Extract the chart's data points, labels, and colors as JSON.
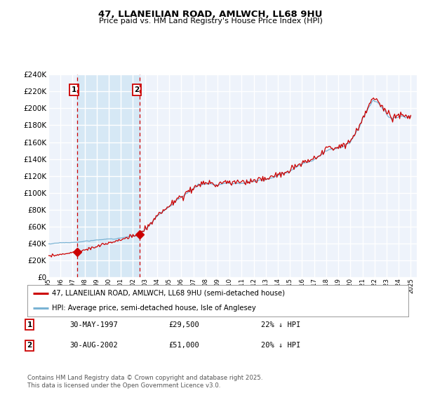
{
  "title": "47, LLANEILIAN ROAD, AMLWCH, LL68 9HU",
  "subtitle": "Price paid vs. HM Land Registry's House Price Index (HPI)",
  "red_label": "47, LLANEILIAN ROAD, AMLWCH, LL68 9HU (semi-detached house)",
  "blue_label": "HPI: Average price, semi-detached house, Isle of Anglesey",
  "footnote": "Contains HM Land Registry data © Crown copyright and database right 2025.\nThis data is licensed under the Open Government Licence v3.0.",
  "purchase1_date": "30-MAY-1997",
  "purchase1_price": 29500,
  "purchase1_hpi_pct": "22% ↓ HPI",
  "purchase2_date": "30-AUG-2002",
  "purchase2_price": 51000,
  "purchase2_hpi_pct": "20% ↓ HPI",
  "purchase1_year": 1997.37,
  "purchase2_year": 2002.58,
  "ylim": [
    0,
    240000
  ],
  "ytick_step": 20000,
  "plot_bg": "#eef3fb",
  "line_red": "#cc0000",
  "line_blue": "#7ab3d4",
  "shade_color": "#d6e8f5",
  "vline_color": "#cc0000",
  "grid_color": "#ffffff",
  "marker_color": "#cc0000",
  "box_color": "#cc0000",
  "xlim_left": 1995.0,
  "xlim_right": 2025.5
}
